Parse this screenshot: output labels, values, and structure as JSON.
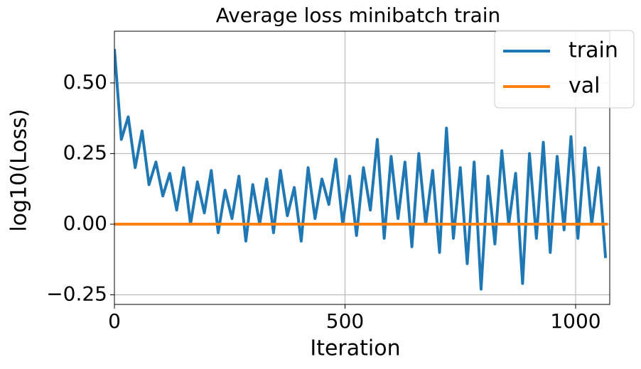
{
  "chart_data": {
    "type": "line",
    "title": "Average loss minibatch train",
    "xlabel": "Iteration",
    "ylabel": "log10(Loss)",
    "xlim": [
      0,
      1074
    ],
    "ylim": [
      -0.284,
      0.683
    ],
    "xticks": [
      0,
      500,
      1000
    ],
    "yticks": [
      {
        "value": -0.25,
        "label": "−0.25"
      },
      {
        "value": 0,
        "label": "0.00"
      },
      {
        "value": 0.25,
        "label": "0.25"
      },
      {
        "value": 0.5,
        "label": "0.50"
      }
    ],
    "grid": true,
    "legend": "upper right",
    "series": [
      {
        "name": "train",
        "color": "#1f77b4",
        "x": [
          0,
          15,
          30,
          45,
          60,
          75,
          90,
          105,
          120,
          135,
          150,
          165,
          180,
          195,
          210,
          225,
          240,
          255,
          270,
          285,
          300,
          315,
          330,
          345,
          360,
          375,
          390,
          405,
          420,
          435,
          450,
          465,
          480,
          495,
          510,
          525,
          540,
          555,
          570,
          585,
          600,
          615,
          630,
          645,
          660,
          675,
          690,
          705,
          720,
          735,
          750,
          765,
          780,
          795,
          810,
          825,
          840,
          855,
          870,
          885,
          900,
          915,
          930,
          945,
          960,
          975,
          990,
          1005,
          1020,
          1035,
          1050,
          1065
        ],
        "values": [
          0.62,
          0.3,
          0.38,
          0.2,
          0.33,
          0.14,
          0.22,
          0.1,
          0.18,
          0.05,
          0.2,
          0.0,
          0.15,
          0.04,
          0.19,
          -0.03,
          0.12,
          0.02,
          0.17,
          -0.06,
          0.14,
          0.0,
          0.16,
          -0.03,
          0.19,
          0.03,
          0.13,
          -0.06,
          0.2,
          0.02,
          0.16,
          0.07,
          0.23,
          0.0,
          0.17,
          -0.04,
          0.2,
          0.05,
          0.3,
          -0.05,
          0.24,
          0.02,
          0.22,
          -0.08,
          0.25,
          0.0,
          0.19,
          -0.1,
          0.34,
          -0.05,
          0.2,
          -0.14,
          0.22,
          -0.23,
          0.17,
          -0.07,
          0.26,
          0.0,
          0.18,
          -0.21,
          0.25,
          -0.05,
          0.29,
          -0.1,
          0.24,
          -0.02,
          0.31,
          -0.05,
          0.27,
          0.0,
          0.2,
          -0.12
        ]
      },
      {
        "name": "val",
        "color": "#ff7f0e",
        "x": [
          0,
          1070
        ],
        "values": [
          0,
          0
        ]
      }
    ]
  }
}
